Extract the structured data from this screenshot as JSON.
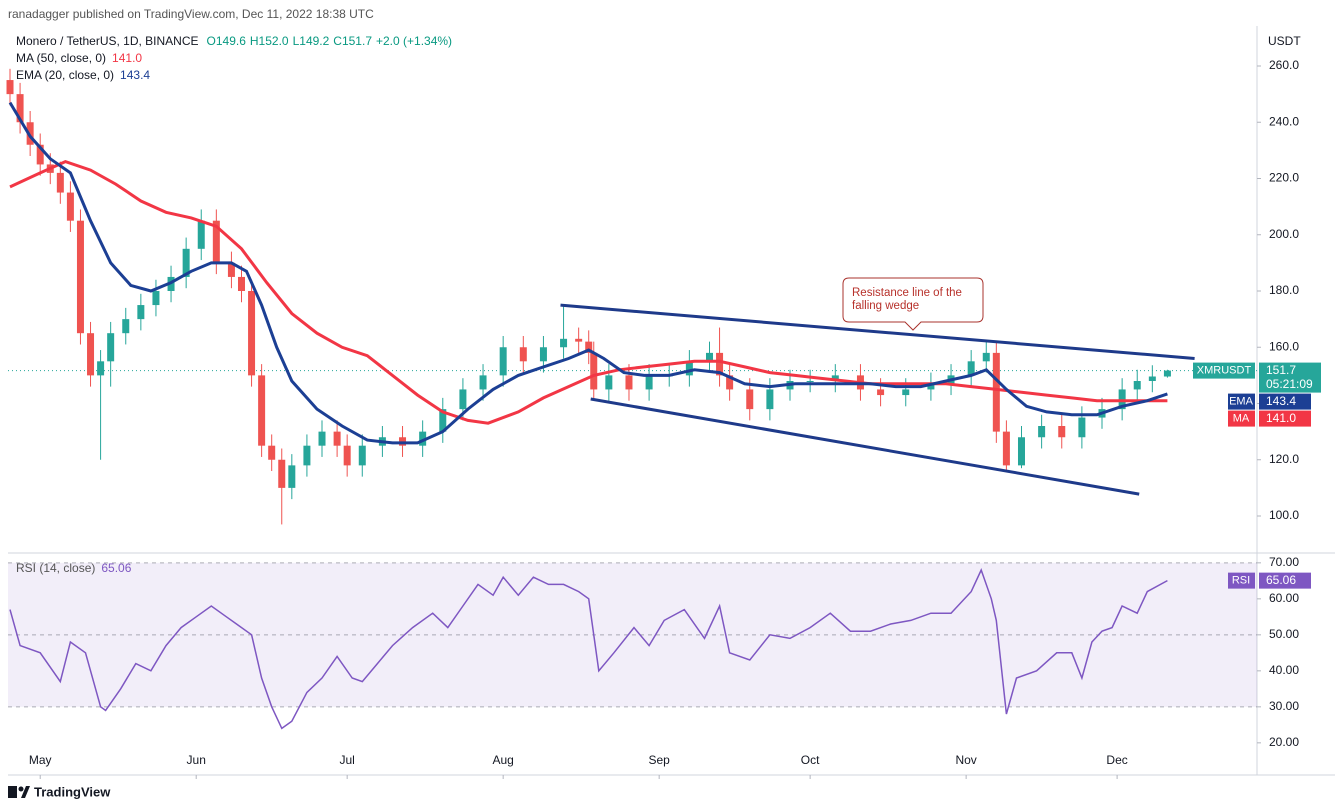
{
  "header": {
    "publisher": "ranadagger published on TradingView.com, Dec 11, 2022 18:38 UTC"
  },
  "footer": {
    "brand": "TradingView"
  },
  "chart_data": [
    {
      "type": "candlestick",
      "symbol": "Monero / TetherUS, 1D, BINANCE",
      "ohlc_labels": [
        "O149.6",
        "H152.0",
        "L149.2",
        "C151.7",
        "+2.0 (+1.34%)"
      ],
      "unit": "USDT",
      "xlim": [
        -6.4,
        241.8
      ],
      "xticks": [
        {
          "value": 0,
          "label": "May"
        },
        {
          "value": 31,
          "label": "Jun"
        },
        {
          "value": 61,
          "label": "Jul"
        },
        {
          "value": 92,
          "label": "Aug"
        },
        {
          "value": 123,
          "label": "Sep"
        },
        {
          "value": 153,
          "label": "Oct"
        },
        {
          "value": 184,
          "label": "Nov"
        },
        {
          "value": 214,
          "label": "Dec"
        }
      ],
      "ylim": [
        87.2,
        272.8
      ],
      "yticks": [
        {
          "value": 100,
          "label": "100.0"
        },
        {
          "value": 120,
          "label": "120.0"
        },
        {
          "value": 140,
          "label": "140.0"
        },
        {
          "value": 160,
          "label": "160.0"
        },
        {
          "value": 180,
          "label": "180.0"
        },
        {
          "value": 200,
          "label": "200.0"
        },
        {
          "value": 220,
          "label": "220.0"
        },
        {
          "value": 240,
          "label": "240.0"
        },
        {
          "value": 260,
          "label": "260.0"
        }
      ],
      "up_color": "#26a69a",
      "down_color": "#ef5350",
      "x": [
        -6,
        -4,
        -2,
        0,
        2,
        4,
        6,
        8,
        10,
        12,
        14,
        17,
        20,
        23,
        26,
        29,
        32,
        35,
        38,
        40,
        42,
        44,
        46,
        48,
        50,
        53,
        56,
        59,
        61,
        64,
        68,
        72,
        76,
        80,
        84,
        88,
        92,
        96,
        100,
        104,
        107,
        109,
        110,
        113,
        117,
        121,
        125,
        129,
        133,
        135,
        137,
        141,
        145,
        149,
        153,
        158,
        163,
        167,
        172,
        177,
        181,
        185,
        188,
        190,
        192,
        195,
        199,
        203,
        207,
        211,
        215,
        218,
        221,
        224
      ],
      "open": [
        255,
        250,
        240,
        232,
        225,
        222,
        215,
        205,
        165,
        150,
        155,
        165,
        170,
        175,
        180,
        185,
        195,
        205,
        190,
        185,
        180,
        150,
        125,
        120,
        110,
        118,
        125,
        130,
        125,
        118,
        125,
        128,
        125,
        130,
        138,
        145,
        150,
        160,
        155,
        160,
        163,
        162,
        158,
        145,
        150,
        145,
        150,
        150,
        155,
        158,
        150,
        145,
        138,
        145,
        148,
        148,
        150,
        145,
        143,
        145,
        147,
        150,
        155,
        158,
        130,
        118,
        128,
        132,
        128,
        135,
        138,
        145,
        148,
        149.6
      ],
      "high": [
        259,
        254,
        244,
        236,
        229,
        226,
        219,
        209,
        169,
        159,
        169,
        174,
        179,
        184,
        189,
        199,
        209,
        209,
        194,
        189,
        184,
        154,
        129,
        124,
        122,
        129,
        134,
        134,
        129,
        129,
        132,
        132,
        134,
        142,
        149,
        154,
        164,
        164,
        164,
        175,
        167,
        166,
        162,
        154,
        154,
        154,
        154,
        159,
        162,
        167,
        154,
        149,
        149,
        152,
        152,
        154,
        154,
        149,
        149,
        151,
        154,
        159,
        162,
        162,
        134,
        132,
        136,
        136,
        139,
        142,
        149,
        152,
        153.6,
        152.0
      ],
      "low": [
        246,
        236,
        228,
        221,
        218,
        211,
        201,
        161,
        146,
        120,
        146,
        161,
        166,
        171,
        176,
        181,
        191,
        186,
        181,
        176,
        146,
        121,
        116,
        97,
        106,
        114,
        121,
        121,
        114,
        114,
        121,
        121,
        121,
        126,
        134,
        141,
        146,
        151,
        151,
        156,
        158,
        154,
        141,
        141,
        141,
        141,
        146,
        146,
        151,
        146,
        141,
        134,
        134,
        141,
        144,
        144,
        141,
        139,
        139,
        141,
        143,
        146,
        151,
        126,
        116,
        117,
        124,
        124,
        124,
        131,
        134,
        141,
        144,
        149.2
      ],
      "close": [
        250,
        240,
        232,
        225,
        222,
        215,
        205,
        165,
        150,
        155,
        165,
        170,
        175,
        180,
        185,
        195,
        205,
        190,
        185,
        180,
        150,
        125,
        120,
        110,
        118,
        125,
        130,
        125,
        118,
        125,
        128,
        125,
        130,
        138,
        145,
        150,
        160,
        155,
        160,
        163,
        162,
        158,
        145,
        150,
        145,
        150,
        150,
        155,
        158,
        150,
        145,
        138,
        145,
        148,
        148,
        150,
        145,
        143,
        145,
        147,
        150,
        155,
        158,
        130,
        118,
        128,
        132,
        128,
        135,
        138,
        145,
        148,
        149.6,
        151.7
      ],
      "series": [
        {
          "name": "MA (50, close, 0)",
          "tag": "MA",
          "value_label": "141.0",
          "color": "#f23645",
          "x": [
            -6,
            0,
            5,
            10,
            15,
            20,
            25,
            30,
            35,
            40,
            45,
            50,
            55,
            60,
            65,
            70,
            75,
            80,
            85,
            89,
            95,
            100,
            105,
            110,
            115,
            120,
            125,
            130,
            135,
            140,
            145,
            150,
            155,
            160,
            165,
            170,
            175,
            180,
            185,
            190,
            195,
            200,
            205,
            210,
            215,
            220,
            224
          ],
          "values": [
            217,
            222,
            226,
            223,
            218,
            212,
            208,
            206,
            203,
            195,
            183,
            172,
            165,
            160,
            157,
            150,
            143,
            137,
            134,
            133,
            137,
            142,
            146,
            150,
            152,
            153,
            154,
            155,
            155,
            153,
            151,
            150,
            149,
            148,
            147,
            147,
            147,
            147,
            146,
            145,
            144,
            143,
            142,
            141,
            141,
            141,
            141.0
          ]
        },
        {
          "name": "EMA (20, close, 0)",
          "tag": "EMA",
          "value_label": "143.4",
          "color": "#1c3f94",
          "x": [
            -6,
            -2,
            2,
            6,
            10,
            14,
            18,
            22,
            26,
            30,
            34,
            38,
            41,
            44,
            47,
            50,
            55,
            60,
            65,
            70,
            75,
            80,
            85,
            90,
            95,
            100,
            105,
            109,
            112,
            116,
            120,
            125,
            130,
            135,
            140,
            145,
            150,
            155,
            160,
            165,
            170,
            175,
            180,
            185,
            188,
            192,
            196,
            200,
            205,
            210,
            215,
            220,
            224
          ],
          "values": [
            247,
            235,
            227,
            222,
            205,
            190,
            182,
            180,
            183,
            187,
            190,
            190,
            187,
            175,
            160,
            148,
            138,
            132,
            127,
            126,
            126,
            130,
            138,
            145,
            150,
            153,
            156,
            159,
            156,
            151,
            150,
            150,
            152,
            151,
            147,
            146,
            147,
            147,
            147,
            147,
            146,
            146,
            148,
            150,
            152,
            145,
            139,
            137,
            136,
            136,
            139,
            141,
            143.4
          ]
        }
      ],
      "last_price": {
        "name": "XMRUSDT",
        "value": 151.7,
        "value_label": "151.7",
        "countdown": "05:21:09",
        "color": "#26a69a"
      },
      "trendlines": [
        {
          "color": "#1e3a8a",
          "x": [
            103.4,
            229.4
          ],
          "y": [
            175,
            156
          ]
        },
        {
          "color": "#1e3a8a",
          "x": [
            109.4,
            218.4
          ],
          "y": [
            141.6,
            107.8
          ]
        }
      ],
      "annotation": [
        "Resistance line of the",
        "falling wedge"
      ]
    },
    {
      "type": "line",
      "ylim": [
        19.4,
        71.9
      ],
      "yticks": [
        {
          "value": 20,
          "label": "20.00"
        },
        {
          "value": 30,
          "label": "30.00"
        },
        {
          "value": 40,
          "label": "40.00"
        },
        {
          "value": 50,
          "label": "50.00"
        },
        {
          "value": 60,
          "label": "60.00"
        },
        {
          "value": 70,
          "label": "70.00"
        }
      ],
      "band": [
        30,
        70
      ],
      "levels": [
        30,
        50,
        70
      ],
      "series": [
        {
          "name": "RSI (14, close)",
          "tag": "RSI",
          "value_label": "65.06",
          "color": "#7e57c2",
          "x": [
            -6,
            -4,
            0,
            4,
            6,
            9,
            12,
            13,
            16,
            19,
            22,
            25,
            28,
            31,
            34,
            37,
            39,
            42,
            44,
            46,
            48,
            50,
            53,
            56,
            59,
            62,
            64,
            67,
            70,
            74,
            78,
            81,
            84,
            87,
            90,
            92,
            95,
            98,
            101,
            104,
            107,
            109,
            111,
            114,
            118,
            121,
            124,
            128,
            132,
            135,
            137,
            141,
            145,
            149,
            153,
            157,
            161,
            165,
            169,
            173,
            177,
            181,
            185,
            187,
            189,
            190,
            192,
            194,
            198,
            202,
            205,
            207,
            209,
            211,
            213,
            215,
            218,
            220,
            224
          ],
          "values": [
            57,
            47,
            45,
            37,
            48,
            45,
            30,
            29,
            35,
            42,
            40,
            47,
            52,
            55,
            58,
            55,
            53,
            50,
            38,
            30,
            24,
            26,
            34,
            38,
            44,
            38,
            37,
            42,
            47,
            52,
            56,
            52,
            58,
            64,
            61,
            66,
            61,
            66,
            64,
            64,
            62,
            60,
            40,
            45,
            52,
            47,
            54,
            57,
            49,
            58,
            45,
            43,
            50,
            49,
            52,
            56,
            51,
            51,
            53,
            54,
            56,
            56,
            62,
            68,
            60,
            54,
            28,
            38,
            40,
            45,
            45,
            38,
            48,
            51,
            52,
            58,
            56,
            62,
            65.06
          ]
        }
      ]
    }
  ]
}
